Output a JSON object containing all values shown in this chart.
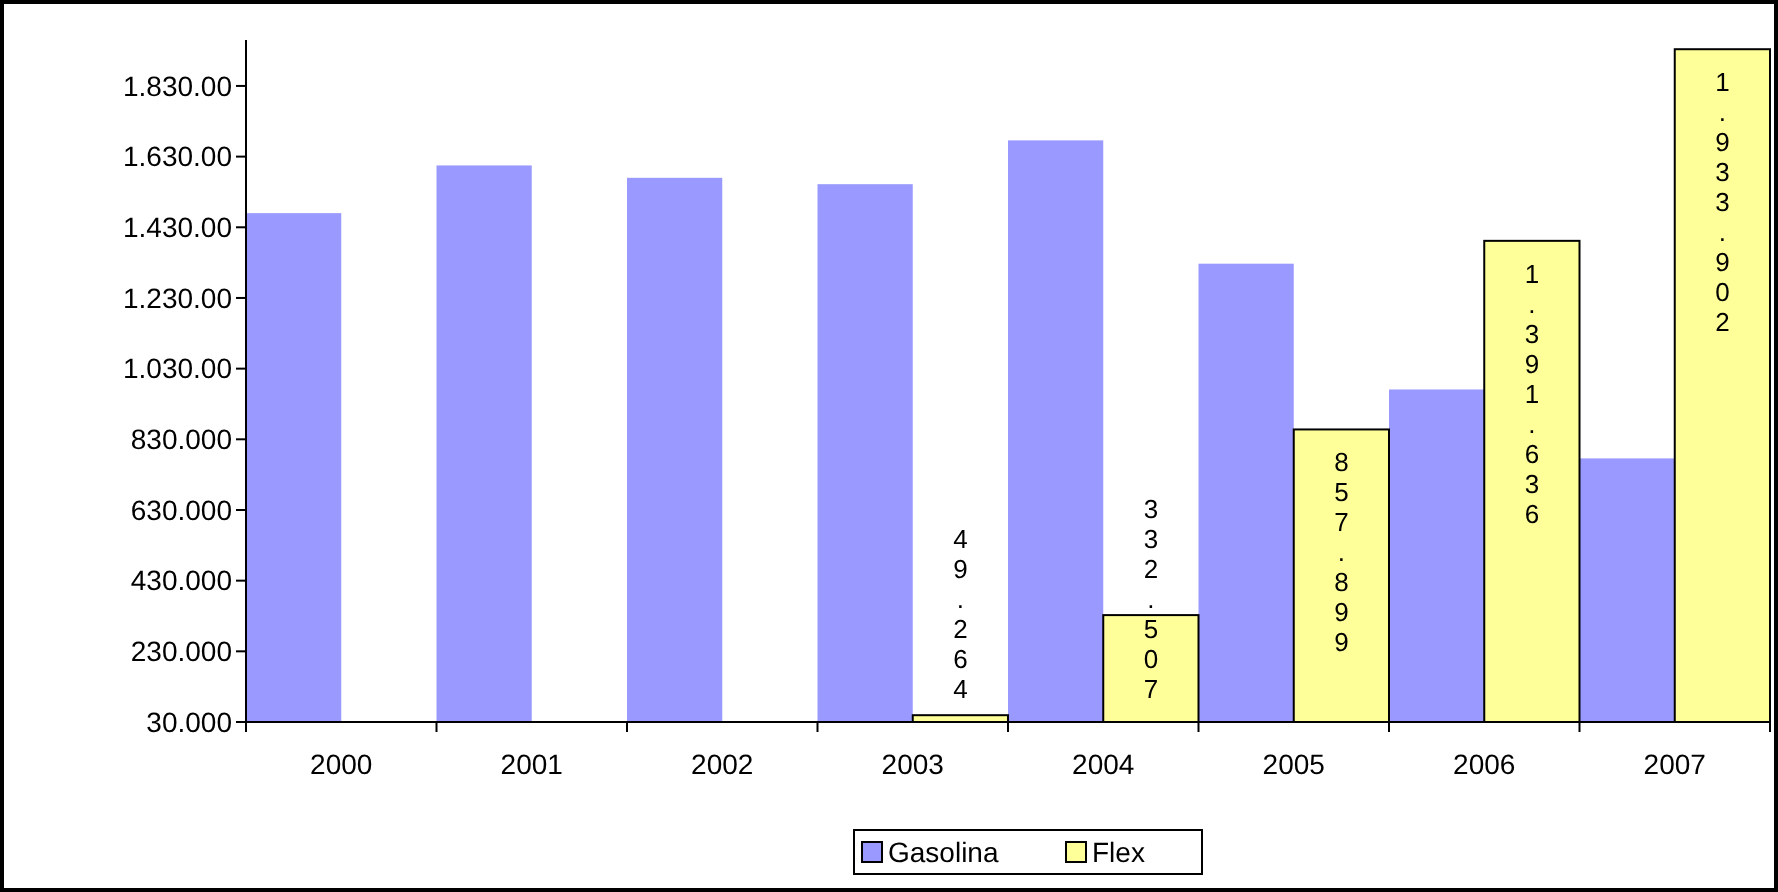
{
  "chart_data": {
    "type": "bar",
    "categories": [
      "2000",
      "2001",
      "2002",
      "2003",
      "2004",
      "2005",
      "2006",
      "2007"
    ],
    "series": [
      {
        "name": "Gasolina",
        "color": "#9999ff",
        "values": [
          1470000,
          1605000,
          1570000,
          1552000,
          1676000,
          1327000,
          971000,
          776000
        ]
      },
      {
        "name": "Flex",
        "color": "#ffff99",
        "values": [
          null,
          null,
          null,
          49264,
          332507,
          857899,
          1391636,
          1933902
        ],
        "value_labels": [
          null,
          null,
          null,
          "49.264",
          "332.507",
          "857.899",
          "1.391.636",
          "1.933.902"
        ]
      }
    ],
    "ylim": [
      30000,
      1960000
    ],
    "yticks": [
      {
        "value": 30000,
        "label": "30.000"
      },
      {
        "value": 230000,
        "label": "230.000"
      },
      {
        "value": 430000,
        "label": "430.000"
      },
      {
        "value": 630000,
        "label": "630.000"
      },
      {
        "value": 830000,
        "label": "830.000"
      },
      {
        "value": 1030000,
        "label": "1.030.00"
      },
      {
        "value": 1230000,
        "label": "1.230.00"
      },
      {
        "value": 1430000,
        "label": "1.430.00"
      },
      {
        "value": 1630000,
        "label": "1.630.00"
      },
      {
        "value": 1830000,
        "label": "1.830.00"
      }
    ],
    "grid": false,
    "legend": "bottom"
  }
}
